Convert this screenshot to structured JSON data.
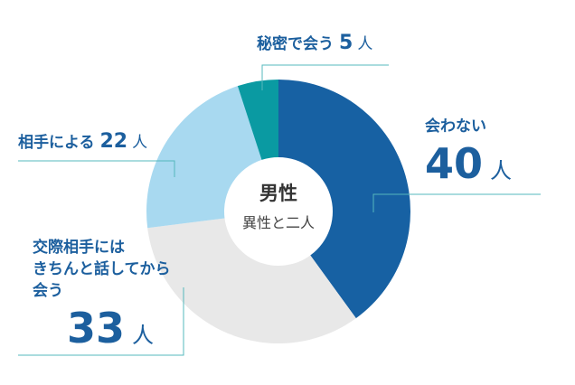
{
  "chart_data": {
    "type": "pie",
    "center_title": "男性",
    "center_subtitle": "異性と二人",
    "unit": "人",
    "categories": [
      "会わない",
      "交際相手には\nきちんと話してから\n会う",
      "相手による",
      "秘密で会う"
    ],
    "values": [
      40,
      33,
      22,
      5
    ],
    "colors": [
      "#1761a3",
      "#e8e8e8",
      "#a8d9f0",
      "#0a9aa2"
    ],
    "donut": true
  }
}
